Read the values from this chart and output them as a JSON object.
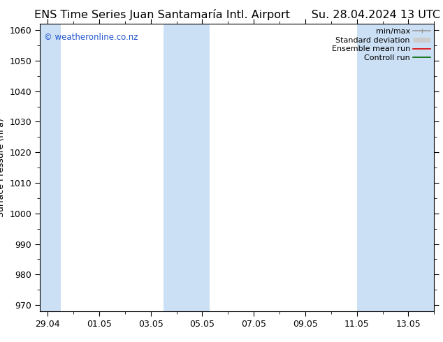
{
  "title_left": "ENS Time Series Juan Santamaría Intl. Airport",
  "title_right": "Su. 28.04.2024 13 UTC",
  "ylabel": "Surface Pressure (hPa)",
  "ylim": [
    968,
    1062
  ],
  "yticks": [
    970,
    980,
    990,
    1000,
    1010,
    1020,
    1030,
    1040,
    1050,
    1060
  ],
  "xlim_start": -0.3,
  "xlim_end": 15.0,
  "xtick_labels": [
    "29.04",
    "01.05",
    "03.05",
    "05.05",
    "07.05",
    "09.05",
    "11.05",
    "13.05"
  ],
  "xtick_positions": [
    0,
    2,
    4,
    6,
    8,
    10,
    12,
    14
  ],
  "background_color": "#ffffff",
  "plot_bg_color": "#ffffff",
  "shaded_bands": [
    {
      "xstart": -0.3,
      "xend": 0.5,
      "color": "#cce0f5"
    },
    {
      "xstart": 4.5,
      "xend": 6.3,
      "color": "#cce0f5"
    },
    {
      "xstart": 12.0,
      "xend": 15.0,
      "color": "#cce0f5"
    }
  ],
  "watermark": "© weatheronline.co.nz",
  "watermark_color": "#2255cc",
  "legend_items": [
    {
      "label": "min/max",
      "color": "#999999",
      "lw": 1.2
    },
    {
      "label": "Standard deviation",
      "color": "#cccccc",
      "lw": 5
    },
    {
      "label": "Ensemble mean run",
      "color": "#dd0000",
      "lw": 1.2
    },
    {
      "label": "Controll run",
      "color": "#006600",
      "lw": 1.2
    }
  ],
  "title_fontsize": 11.5,
  "tick_label_fontsize": 9,
  "ylabel_fontsize": 9,
  "spine_color": "#000000",
  "figsize": [
    6.34,
    4.9
  ],
  "dpi": 100
}
